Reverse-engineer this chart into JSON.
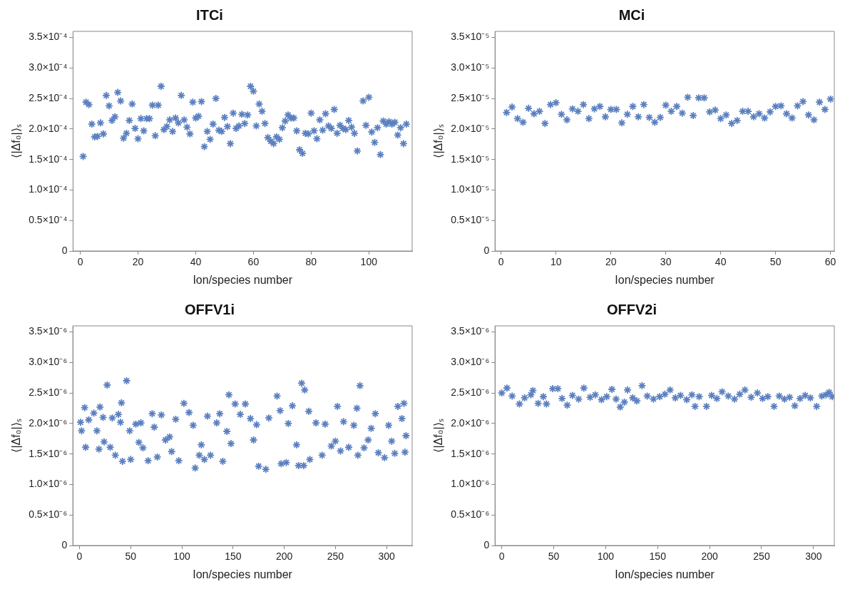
{
  "chart_data": [
    {
      "type": "scatter",
      "title": "ITCi",
      "xlabel": "Ion/species number",
      "ylabel": "⟨|Δf₀|⟩ₛ",
      "marker": "cross",
      "grid": false,
      "color": "#5b80c0",
      "xlim": [
        -2.5,
        115
      ],
      "xticks": [
        0,
        20,
        40,
        60,
        80,
        100
      ],
      "ylim": [
        0,
        0.00036
      ],
      "yticks": [
        {
          "value": 0,
          "label": "0"
        },
        {
          "value": 5e-05,
          "label": "0.5×10⁻⁴"
        },
        {
          "value": 0.0001,
          "label": "1.0×10⁻⁴"
        },
        {
          "value": 0.00015,
          "label": "1.5×10⁻⁴"
        },
        {
          "value": 0.0002,
          "label": "2.0×10⁻⁴"
        },
        {
          "value": 0.00025,
          "label": "2.5×10⁻⁴"
        },
        {
          "value": 0.0003,
          "label": "3.0×10⁻⁴"
        },
        {
          "value": 0.00035,
          "label": "3.5×10⁻⁴"
        }
      ],
      "x": [
        1,
        2,
        3,
        4,
        5,
        6,
        7,
        8,
        9,
        10,
        11,
        12,
        13,
        14,
        15,
        16,
        17,
        18,
        19,
        20,
        21,
        22,
        23,
        24,
        25,
        26,
        27,
        28,
        29,
        30,
        31,
        32,
        33,
        34,
        35,
        36,
        37,
        38,
        39,
        40,
        41,
        42,
        43,
        44,
        45,
        46,
        47,
        48,
        49,
        50,
        51,
        52,
        53,
        54,
        55,
        56,
        57,
        58,
        59,
        60,
        61,
        62,
        63,
        64,
        65,
        66,
        67,
        68,
        69,
        70,
        71,
        72,
        73,
        74,
        75,
        76,
        77,
        78,
        79,
        80,
        81,
        82,
        83,
        84,
        85,
        86,
        87,
        88,
        89,
        90,
        91,
        92,
        93,
        94,
        95,
        96,
        98,
        99,
        100,
        101,
        102,
        103,
        104,
        105,
        106,
        107,
        108,
        109,
        110,
        111,
        112,
        113
      ],
      "values": [
        0.000155,
        0.000244,
        0.00024,
        0.000208,
        0.000187,
        0.000188,
        0.00021,
        0.000192,
        0.000255,
        0.000238,
        0.000214,
        0.00022,
        0.00026,
        0.000246,
        0.000185,
        0.000193,
        0.000214,
        0.000241,
        0.000201,
        0.000184,
        0.000217,
        0.000197,
        0.000217,
        0.000217,
        0.000239,
        0.000189,
        0.000239,
        0.00027,
        0.000199,
        0.000204,
        0.000215,
        0.000196,
        0.000218,
        0.00021,
        0.000255,
        0.000215,
        0.000203,
        0.000192,
        0.000244,
        0.000218,
        0.000221,
        0.000245,
        0.000171,
        0.000196,
        0.000183,
        0.000208,
        0.00025,
        0.000198,
        0.000196,
        0.000219,
        0.000204,
        0.000176,
        0.000226,
        0.000201,
        0.000205,
        0.000224,
        0.000209,
        0.000223,
        0.00027,
        0.000262,
        0.000205,
        0.000241,
        0.000229,
        0.000209,
        0.000186,
        0.00018,
        0.000176,
        0.000187,
        0.000183,
        0.000202,
        0.000213,
        0.000223,
        0.000218,
        0.000218,
        0.000197,
        0.000166,
        0.00016,
        0.000193,
        0.000192,
        0.000226,
        0.000197,
        0.000184,
        0.000215,
        0.000198,
        0.000225,
        0.000205,
        0.000201,
        0.000232,
        0.000193,
        0.000206,
        0.000201,
        0.000199,
        0.000214,
        0.000203,
        0.000193,
        0.000164,
        0.000246,
        0.000206,
        0.000252,
        0.000195,
        0.000178,
        0.000202,
        0.000158,
        0.000213,
        0.000208,
        0.000212,
        0.000208,
        0.000211,
        0.00019,
        0.000202,
        0.000176,
        0.000208
      ]
    },
    {
      "type": "scatter",
      "title": "MCi",
      "xlabel": "Ion/species number",
      "ylabel": "⟨|Δf₀|⟩ₛ",
      "marker": "cross",
      "grid": false,
      "color": "#5b80c0",
      "xlim": [
        -1.1,
        60.7
      ],
      "xticks": [
        0,
        10,
        20,
        30,
        40,
        50,
        60
      ],
      "ylim": [
        0,
        3.6e-05
      ],
      "yticks": [
        {
          "value": 0,
          "label": "0"
        },
        {
          "value": 5e-06,
          "label": "0.5×10⁻⁵"
        },
        {
          "value": 1e-05,
          "label": "1.0×10⁻⁵"
        },
        {
          "value": 1.5e-05,
          "label": "1.5×10⁻⁵"
        },
        {
          "value": 2e-05,
          "label": "2.0×10⁻⁵"
        },
        {
          "value": 2.5e-05,
          "label": "2.5×10⁻⁵"
        },
        {
          "value": 3e-05,
          "label": "3.0×10⁻⁵"
        },
        {
          "value": 3.5e-05,
          "label": "3.5×10⁻⁵"
        }
      ],
      "x": [
        1,
        2,
        3,
        4,
        5,
        6,
        7,
        8,
        9,
        10,
        11,
        12,
        13,
        14,
        15,
        16,
        17,
        18,
        19,
        20,
        21,
        22,
        23,
        24,
        25,
        26,
        27,
        28,
        29,
        30,
        31,
        32,
        33,
        34,
        35,
        36,
        37,
        38,
        39,
        40,
        41,
        42,
        43,
        44,
        45,
        46,
        47,
        48,
        49,
        50,
        51,
        52,
        53,
        54,
        55,
        56,
        57,
        58,
        59,
        60
      ],
      "values": [
        2.27e-05,
        2.36e-05,
        2.17e-05,
        2.11e-05,
        2.34e-05,
        2.25e-05,
        2.29e-05,
        2.09e-05,
        2.4e-05,
        2.43e-05,
        2.24e-05,
        2.15e-05,
        2.33e-05,
        2.29e-05,
        2.4e-05,
        2.17e-05,
        2.33e-05,
        2.37e-05,
        2.2e-05,
        2.32e-05,
        2.32e-05,
        2.1e-05,
        2.24e-05,
        2.37e-05,
        2.2e-05,
        2.4e-05,
        2.19e-05,
        2.11e-05,
        2.19e-05,
        2.39e-05,
        2.29e-05,
        2.37e-05,
        2.26e-05,
        2.52e-05,
        2.22e-05,
        2.51e-05,
        2.51e-05,
        2.28e-05,
        2.31e-05,
        2.17e-05,
        2.23e-05,
        2.09e-05,
        2.14e-05,
        2.29e-05,
        2.29e-05,
        2.2e-05,
        2.25e-05,
        2.18e-05,
        2.28e-05,
        2.37e-05,
        2.38e-05,
        2.25e-05,
        2.18e-05,
        2.38e-05,
        2.45e-05,
        2.23e-05,
        2.15e-05,
        2.44e-05,
        2.32e-05,
        2.49e-05
      ]
    },
    {
      "type": "scatter",
      "title": "OFFV1i",
      "xlabel": "Ion/species number",
      "ylabel": "⟨|Δf₀|⟩ₛ",
      "marker": "cross",
      "grid": false,
      "color": "#5b80c0",
      "xlim": [
        -6.5,
        325
      ],
      "xticks": [
        0,
        50,
        100,
        150,
        200,
        250,
        300
      ],
      "ylim": [
        0,
        3.6e-06
      ],
      "yticks": [
        {
          "value": 0,
          "label": "0"
        },
        {
          "value": 5e-07,
          "label": "0.5×10⁻⁶"
        },
        {
          "value": 1e-06,
          "label": "1.0×10⁻⁶"
        },
        {
          "value": 1.5e-06,
          "label": "1.5×10⁻⁶"
        },
        {
          "value": 2e-06,
          "label": "2.0×10⁻⁶"
        },
        {
          "value": 2.5e-06,
          "label": "2.5×10⁻⁶"
        },
        {
          "value": 3e-06,
          "label": "3.0×10⁻⁶"
        },
        {
          "value": 3.5e-06,
          "label": "3.5×10⁻⁶"
        }
      ],
      "x": [
        1,
        2,
        5,
        6,
        9,
        14,
        17,
        19,
        20,
        23,
        24,
        27,
        30,
        32,
        35,
        38,
        40,
        41,
        42,
        46,
        49,
        50,
        55,
        60,
        62,
        67,
        71,
        73,
        76,
        80,
        84,
        90,
        94,
        97,
        102,
        107,
        111,
        113,
        117,
        122,
        125,
        128,
        134,
        137,
        140,
        144,
        146,
        152,
        157,
        162,
        167,
        173,
        175,
        182,
        185,
        193,
        196,
        197,
        202,
        204,
        208,
        214,
        217,
        219,
        220,
        224,
        225,
        231,
        237,
        240,
        246,
        252,
        255,
        258,
        263,
        268,
        271,
        272,
        274,
        278,
        285,
        289,
        292,
        298,
        302,
        308,
        311,
        315,
        317,
        319,
        318,
        58,
        88,
        119,
        148,
        170,
        212,
        250,
        282,
        305
      ],
      "values": [
        2.02e-06,
        1.88e-06,
        2.26e-06,
        1.61e-06,
        2.06e-06,
        2.17e-06,
        1.88e-06,
        1.58e-06,
        2.27e-06,
        2.1e-06,
        1.7e-06,
        2.63e-06,
        1.61e-06,
        2.09e-06,
        1.48e-06,
        2.15e-06,
        2.02e-06,
        2.34e-06,
        1.38e-06,
        2.7e-06,
        1.88e-06,
        1.41e-06,
        1.99e-06,
        2.01e-06,
        1.6e-06,
        1.39e-06,
        2.16e-06,
        1.94e-06,
        1.45e-06,
        2.14e-06,
        1.73e-06,
        1.54e-06,
        2.07e-06,
        1.39e-06,
        2.33e-06,
        2.18e-06,
        1.97e-06,
        1.27e-06,
        1.48e-06,
        1.41e-06,
        2.12e-06,
        1.48e-06,
        2.01e-06,
        2.16e-06,
        1.38e-06,
        1.87e-06,
        2.47e-06,
        2.32e-06,
        2.15e-06,
        2.32e-06,
        2.08e-06,
        1.98e-06,
        1.3e-06,
        1.25e-06,
        2.09e-06,
        2.45e-06,
        2.21e-06,
        1.34e-06,
        1.36e-06,
        2e-06,
        2.29e-06,
        1.31e-06,
        2.66e-06,
        1.31e-06,
        2.55e-06,
        2.2e-06,
        1.41e-06,
        2.01e-06,
        1.48e-06,
        1.99e-06,
        1.63e-06,
        2.28e-06,
        1.55e-06,
        2.03e-06,
        1.61e-06,
        1.97e-06,
        2.25e-06,
        1.48e-06,
        2.62e-06,
        1.6e-06,
        1.92e-06,
        2.16e-06,
        1.52e-06,
        1.44e-06,
        1.97e-06,
        1.51e-06,
        2.28e-06,
        2.08e-06,
        2.33e-06,
        1.8e-06,
        1.53e-06,
        1.69e-06,
        1.78e-06,
        1.65e-06,
        1.67e-06,
        1.73e-06,
        1.65e-06,
        1.71e-06,
        1.73e-06,
        1.71e-06
      ]
    },
    {
      "type": "scatter",
      "title": "OFFV2i",
      "xlabel": "Ion/species number",
      "ylabel": "⟨|Δf₀|⟩ₛ",
      "marker": "cross",
      "grid": false,
      "color": "#5b80c0",
      "xlim": [
        -6.5,
        320
      ],
      "xticks": [
        0,
        50,
        100,
        150,
        200,
        250,
        300
      ],
      "ylim": [
        0,
        3.6e-06
      ],
      "yticks": [
        {
          "value": 0,
          "label": "0"
        },
        {
          "value": 5e-07,
          "label": "0.5×10⁻⁶"
        },
        {
          "value": 1e-06,
          "label": "1.0×10⁻⁶"
        },
        {
          "value": 1.5e-06,
          "label": "1.5×10⁻⁶"
        },
        {
          "value": 2e-06,
          "label": "2.0×10⁻⁶"
        },
        {
          "value": 2.5e-06,
          "label": "2.5×10⁻⁶"
        },
        {
          "value": 3e-06,
          "label": "3.0×10⁻⁶"
        },
        {
          "value": 3.5e-06,
          "label": "3.5×10⁻⁶"
        }
      ],
      "x": [
        0,
        5,
        10,
        17,
        22,
        28,
        30,
        35,
        40,
        43,
        49,
        54,
        58,
        63,
        68,
        74,
        79,
        85,
        90,
        96,
        101,
        106,
        110,
        114,
        118,
        121,
        126,
        130,
        135,
        140,
        146,
        152,
        157,
        162,
        167,
        172,
        178,
        183,
        186,
        190,
        197,
        202,
        207,
        212,
        218,
        224,
        229,
        234,
        240,
        246,
        251,
        256,
        262,
        267,
        272,
        277,
        282,
        287,
        292,
        297,
        303,
        308,
        312,
        315,
        318
      ],
      "values": [
        2.5e-06,
        2.58e-06,
        2.45e-06,
        2.32e-06,
        2.42e-06,
        2.47e-06,
        2.54e-06,
        2.33e-06,
        2.44e-06,
        2.32e-06,
        2.57e-06,
        2.57e-06,
        2.41e-06,
        2.3e-06,
        2.46e-06,
        2.4e-06,
        2.58e-06,
        2.43e-06,
        2.47e-06,
        2.39e-06,
        2.44e-06,
        2.56e-06,
        2.4e-06,
        2.27e-06,
        2.35e-06,
        2.55e-06,
        2.42e-06,
        2.37e-06,
        2.62e-06,
        2.45e-06,
        2.4e-06,
        2.44e-06,
        2.48e-06,
        2.55e-06,
        2.42e-06,
        2.46e-06,
        2.39e-06,
        2.47e-06,
        2.28e-06,
        2.44e-06,
        2.28e-06,
        2.46e-06,
        2.41e-06,
        2.52e-06,
        2.45e-06,
        2.4e-06,
        2.48e-06,
        2.55e-06,
        2.43e-06,
        2.5e-06,
        2.41e-06,
        2.44e-06,
        2.28e-06,
        2.45e-06,
        2.4e-06,
        2.43e-06,
        2.29e-06,
        2.41e-06,
        2.46e-06,
        2.42e-06,
        2.28e-06,
        2.45e-06,
        2.47e-06,
        2.51e-06,
        2.44e-06
      ]
    }
  ]
}
